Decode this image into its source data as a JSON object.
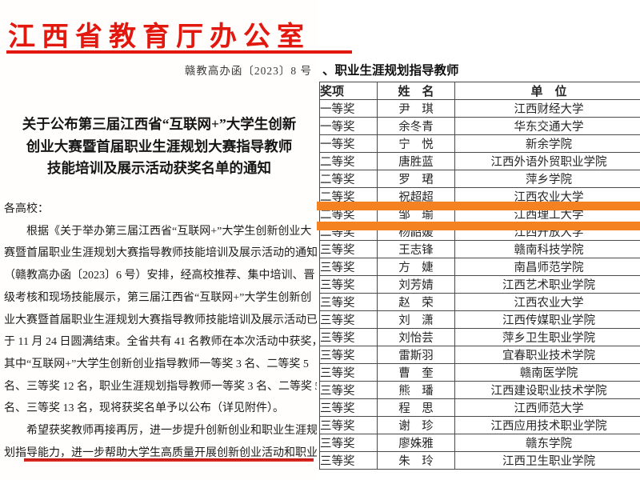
{
  "document": {
    "header_title": "江西省教育厅办公室",
    "doc_number": "赣教高办函〔2023〕8 号",
    "title_lines": [
      "关于公布第三届江西省“互联网+”大学生创新",
      "创业大赛暨首届职业生涯规划大赛指导教师",
      "技能培训及展示活动获奖名单的通知"
    ],
    "body_lines": [
      "各高校：",
      "　　根据《关于举办第三届江西省“互联网+”大学生创新创业大",
      "赛暨首届职业生涯规划大赛指导教师技能培训及展示活动的通知》",
      "（赣教高办函〔2023〕6 号）安排，经高校推荐、集中培训、晋",
      "级考核和现场技能展示，第三届江西省“互联网+”大学生创新创",
      "业大赛暨首届职业生涯规划大赛指导教师技能培训及展示活动已",
      "于 11 月 24 日圆满结束。全省共有 41 名教师在本次活动中获奖，",
      "其中“互联网+”大学生创新创业指导教师一等奖 3 名、二等奖 5",
      "名、三等奖 12 名，职业生涯规划指导教师一等奖 3 名、二等奖 5",
      "名、三等奖 13 名，现将获奖名单予以公布（详见附件）。",
      "　　希望获奖教师再接再厉，进一步提升创新创业和职业生涯规",
      "划指导能力，进一步帮助大学生高质量开展创新创业活动和职业"
    ],
    "accent_red": "#e2180f"
  },
  "award_table": {
    "section_title": "、职业生涯规划指导教师",
    "columns": [
      "奖项",
      "姓　名",
      "单　位"
    ],
    "rows": [
      {
        "award": "一等奖",
        "name": "尹　琪",
        "unit": "江西财经大学"
      },
      {
        "award": "一等奖",
        "name": "余冬青",
        "unit": "华东交通大学"
      },
      {
        "award": "一等奖",
        "name": "宁　悦",
        "unit": "新余学院"
      },
      {
        "award": "二等奖",
        "name": "唐胜蓝",
        "unit": "江西外语外贸职业学院"
      },
      {
        "award": "二等奖",
        "name": "罗　珺",
        "unit": "萍乡学院"
      },
      {
        "award": "二等奖",
        "name": "祝超超",
        "unit": "江西农业大学"
      },
      {
        "award": "二等奖",
        "name": "邹　瑜",
        "unit": "江西理工大学"
      },
      {
        "award": "二等奖",
        "name": "杨韶媛",
        "unit": "江西开放大学"
      },
      {
        "award": "三等奖",
        "name": "王志锋",
        "unit": "赣南科技学院"
      },
      {
        "award": "三等奖",
        "name": "方　婕",
        "unit": "南昌师范学院"
      },
      {
        "award": "三等奖",
        "name": "刘芳婧",
        "unit": "江西艺术职业学院"
      },
      {
        "award": "三等奖",
        "name": "赵　荣",
        "unit": "江西农业大学"
      },
      {
        "award": "三等奖",
        "name": "刘　潇",
        "unit": "江西传媒职业学院"
      },
      {
        "award": "三等奖",
        "name": "刘怡芸",
        "unit": "萍乡卫生职业学院"
      },
      {
        "award": "三等奖",
        "name": "雷斯羽",
        "unit": "宜春职业技术学院"
      },
      {
        "award": "三等奖",
        "name": "曹　奎",
        "unit": "赣南医学院"
      },
      {
        "award": "三等奖",
        "name": "熊　璠",
        "unit": "江西建设职业技术学院"
      },
      {
        "award": "三等奖",
        "name": "程　思",
        "unit": "江西师范大学"
      },
      {
        "award": "三等奖",
        "name": "谢　珍",
        "unit": "江西应用技术职业学院"
      },
      {
        "award": "三等奖",
        "name": "廖姝雅",
        "unit": "赣东学院"
      },
      {
        "award": "三等奖",
        "name": "朱　玲",
        "unit": "江西卫生职业学院"
      }
    ],
    "highlight": {
      "color": "#f58220",
      "highlighted_name": "杨韶媛"
    }
  }
}
